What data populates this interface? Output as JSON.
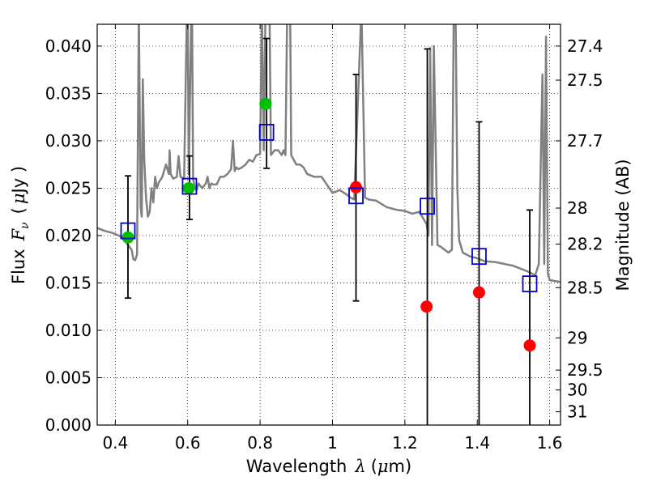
{
  "chart_data": {
    "type": "scatter",
    "title": "",
    "xlabel_text": "Wavelength",
    "xlabel_symbol": "λ",
    "xlabel_unit_open": "(",
    "xlabel_unit_mu": "μ",
    "xlabel_unit_rest": "m)",
    "ylabel_text": "Flux",
    "ylabel_symbol": "F",
    "ylabel_subscript": "ν",
    "ylabel_unit_open": "(",
    "ylabel_unit_mu": "μ",
    "ylabel_unit_rest": "Jy )",
    "y2label": "Magnitude (AB)",
    "xlim": [
      0.35,
      1.63
    ],
    "ylim": [
      0.0,
      0.0423
    ],
    "grid": true,
    "x_ticks": [
      0.4,
      0.6,
      0.8,
      1.0,
      1.2,
      1.4,
      1.6
    ],
    "x_tick_labels": [
      "0.4",
      "0.6",
      "0.8",
      "1",
      "1.2",
      "1.4",
      "1.6"
    ],
    "y_ticks": [
      0.0,
      0.005,
      0.01,
      0.015,
      0.02,
      0.025,
      0.03,
      0.035,
      0.04
    ],
    "y_tick_labels": [
      "0.000",
      "0.005",
      "0.010",
      "0.015",
      "0.020",
      "0.025",
      "0.030",
      "0.035",
      "0.040"
    ],
    "y2_ticks": [
      {
        "label": "27.4",
        "flux": 0.04
      },
      {
        "label": "27.5",
        "flux": 0.0364
      },
      {
        "label": "27.7",
        "flux": 0.03
      },
      {
        "label": "28",
        "flux": 0.0229
      },
      {
        "label": "28.2",
        "flux": 0.0191
      },
      {
        "label": "28.5",
        "flux": 0.0145
      },
      {
        "label": "29",
        "flux": 0.0092
      },
      {
        "label": "29.5",
        "flux": 0.0058
      },
      {
        "label": "30",
        "flux": 0.0037
      },
      {
        "label": "31",
        "flux": 0.0014
      }
    ],
    "series": [
      {
        "type": "line",
        "color": "#808080",
        "x": [
          0.35,
          0.37,
          0.39,
          0.41,
          0.425,
          0.435,
          0.445,
          0.45,
          0.455,
          0.46,
          0.465,
          0.47,
          0.473,
          0.476,
          0.48,
          0.485,
          0.487,
          0.49,
          0.495,
          0.5,
          0.505,
          0.51,
          0.515,
          0.52,
          0.53,
          0.54,
          0.548,
          0.55,
          0.553,
          0.56,
          0.57,
          0.575,
          0.58,
          0.59,
          0.598,
          0.6,
          0.603,
          0.61,
          0.612,
          0.615,
          0.62,
          0.625,
          0.63,
          0.64,
          0.65,
          0.655,
          0.66,
          0.665,
          0.67,
          0.68,
          0.69,
          0.7,
          0.71,
          0.72,
          0.725,
          0.73,
          0.735,
          0.74,
          0.75,
          0.76,
          0.77,
          0.78,
          0.79,
          0.8,
          0.805,
          0.81,
          0.815,
          0.82,
          0.823,
          0.826,
          0.83,
          0.84,
          0.85,
          0.86,
          0.865,
          0.87,
          0.875,
          0.88,
          0.883,
          0.886,
          0.89,
          0.9,
          0.91,
          0.92,
          0.93,
          0.95,
          0.97,
          1.0,
          1.02,
          1.04,
          1.05,
          1.06,
          1.08,
          1.09,
          1.1,
          1.12,
          1.15,
          1.18,
          1.2,
          1.22,
          1.24,
          1.26,
          1.265,
          1.27,
          1.275,
          1.28,
          1.29,
          1.3,
          1.31,
          1.32,
          1.33,
          1.335,
          1.34,
          1.345,
          1.35,
          1.36,
          1.38,
          1.4,
          1.42,
          1.45,
          1.5,
          1.54,
          1.56,
          1.57,
          1.58,
          1.585,
          1.59,
          1.595,
          1.6,
          1.63
        ],
        "y": [
          0.0208,
          0.0205,
          0.0203,
          0.02,
          0.0196,
          0.019,
          0.0185,
          0.0175,
          0.0174,
          0.018,
          0.044,
          0.023,
          0.022,
          0.0365,
          0.028,
          0.024,
          0.0232,
          0.022,
          0.0225,
          0.025,
          0.0235,
          0.0262,
          0.025,
          0.0256,
          0.0262,
          0.0275,
          0.0265,
          0.029,
          0.0265,
          0.026,
          0.0262,
          0.0284,
          0.0262,
          0.026,
          0.044,
          0.044,
          0.0265,
          0.044,
          0.044,
          0.026,
          0.025,
          0.0248,
          0.0255,
          0.025,
          0.0255,
          0.0262,
          0.025,
          0.0255,
          0.0254,
          0.0254,
          0.0262,
          0.0262,
          0.0265,
          0.027,
          0.03,
          0.0268,
          0.0272,
          0.027,
          0.0272,
          0.0275,
          0.028,
          0.0278,
          0.0285,
          0.0286,
          0.044,
          0.029,
          0.044,
          0.044,
          0.044,
          0.044,
          0.0285,
          0.029,
          0.029,
          0.0285,
          0.029,
          0.0285,
          0.044,
          0.044,
          0.044,
          0.0285,
          0.0282,
          0.0275,
          0.0275,
          0.0272,
          0.0265,
          0.0262,
          0.0262,
          0.0245,
          0.0248,
          0.0243,
          0.024,
          0.0238,
          0.044,
          0.024,
          0.0238,
          0.0237,
          0.023,
          0.0227,
          0.0226,
          0.0223,
          0.0225,
          0.0212,
          0.02,
          0.0398,
          0.019,
          0.04,
          0.019,
          0.0188,
          0.0185,
          0.0182,
          0.0185,
          0.044,
          0.044,
          0.025,
          0.0195,
          0.0182,
          0.0178,
          0.0176,
          0.0173,
          0.0172,
          0.0168,
          0.0162,
          0.0158,
          0.017,
          0.037,
          0.017,
          0.041,
          0.016,
          0.0153,
          0.0151
        ]
      },
      {
        "type": "scatter",
        "name": "",
        "color": "#00c000",
        "marker": "circle",
        "x": [
          0.435,
          0.603,
          0.815
        ],
        "y": [
          0.0198,
          0.025,
          0.0339
        ]
      },
      {
        "type": "scatter",
        "name": "",
        "color": "#ff0000",
        "marker": "circle",
        "x": [
          1.065,
          1.26,
          1.405,
          1.545
        ],
        "y": [
          0.0251,
          0.0125,
          0.014,
          0.0084
        ]
      },
      {
        "type": "scatter",
        "name": "",
        "color": "#0000cc",
        "marker": "open-square",
        "x": [
          0.435,
          0.605,
          0.818,
          1.065,
          1.262,
          1.405,
          1.545
        ],
        "y": [
          0.0205,
          0.0252,
          0.0309,
          0.0242,
          0.0231,
          0.0178,
          0.0149
        ]
      }
    ],
    "error_bars": [
      {
        "x": 0.435,
        "low": 0.0134,
        "high": 0.0263
      },
      {
        "x": 0.605,
        "low": 0.0217,
        "high": 0.0284
      },
      {
        "x": 0.818,
        "low": 0.0271,
        "high": 0.0408
      },
      {
        "x": 1.065,
        "low": 0.0131,
        "high": 0.037
      },
      {
        "x": 1.262,
        "low": 0.0,
        "high": 0.0397
      },
      {
        "x": 1.405,
        "low": 0.0,
        "high": 0.032
      },
      {
        "x": 1.545,
        "low": 0.0,
        "high": 0.0227
      }
    ]
  }
}
